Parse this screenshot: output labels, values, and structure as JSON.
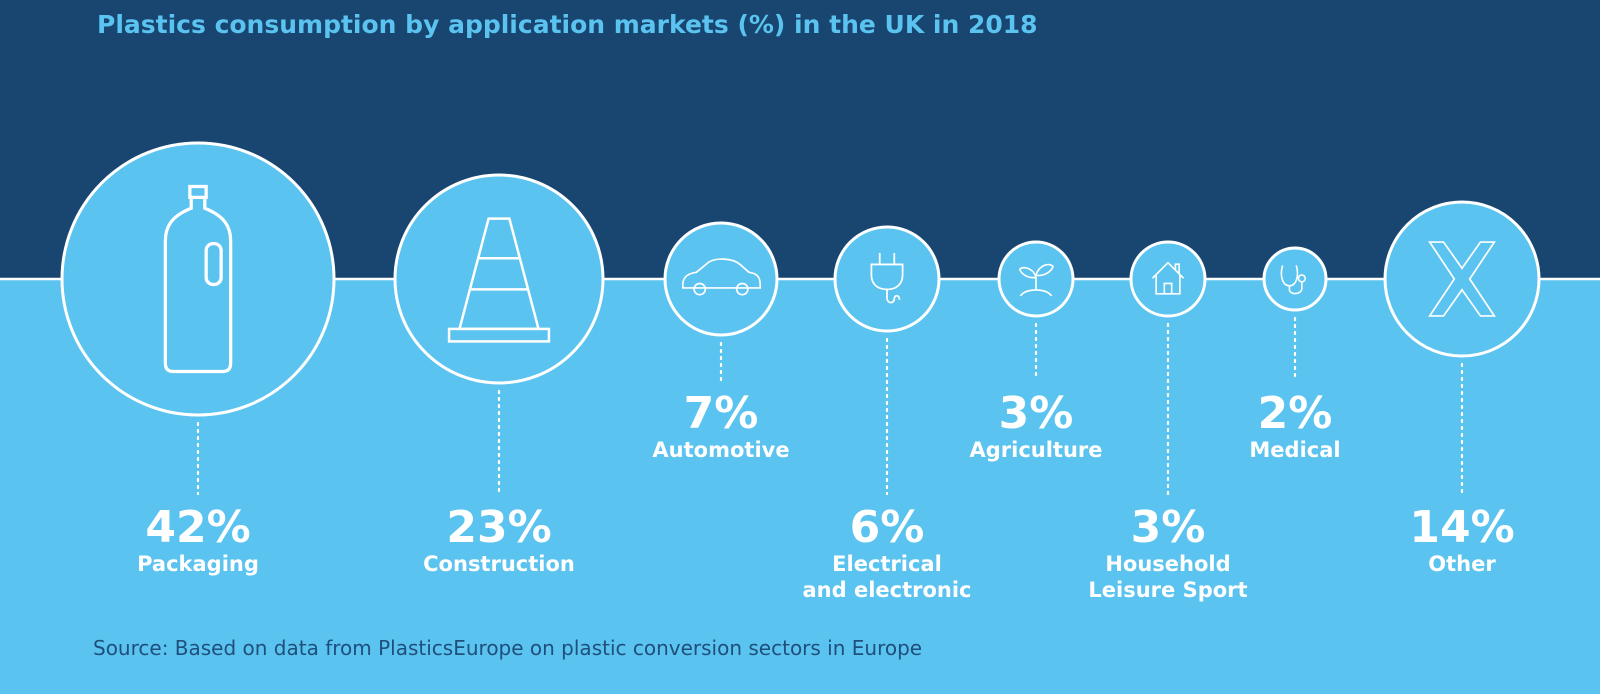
{
  "colors": {
    "background_top": "#184671",
    "background_bottom": "#5bc3ef",
    "title": "#5bc3ef",
    "source": "#1f4f7c",
    "stroke": "#ffffff"
  },
  "chart_data": {
    "type": "bubble",
    "title": "Plastics consumption by application markets (%) in the UK in 2018",
    "source": "Source: Based on data from PlasticsEurope on plastic conversion sectors in Europe",
    "unit": "%",
    "segments": [
      {
        "key": "packaging",
        "label": "Packaging",
        "value": 42,
        "value_label": "42%",
        "icon": "bottle-icon"
      },
      {
        "key": "construction",
        "label": "Construction",
        "value": 23,
        "value_label": "23%",
        "icon": "traffic-cone-icon"
      },
      {
        "key": "automotive",
        "label": "Automotive",
        "value": 7,
        "value_label": "7%",
        "icon": "car-icon"
      },
      {
        "key": "electrical",
        "label": "Electrical\nand electronic",
        "value": 6,
        "value_label": "6%",
        "icon": "plug-icon"
      },
      {
        "key": "agriculture",
        "label": "Agriculture",
        "value": 3,
        "value_label": "3%",
        "icon": "sprout-icon"
      },
      {
        "key": "household",
        "label": "Household\nLeisure Sport",
        "value": 3,
        "value_label": "3%",
        "icon": "house-icon"
      },
      {
        "key": "medical",
        "label": "Medical",
        "value": 2,
        "value_label": "2%",
        "icon": "stethoscope-icon"
      },
      {
        "key": "other",
        "label": "Other",
        "value": 14,
        "value_label": "14%",
        "icon": "x-icon"
      }
    ]
  }
}
